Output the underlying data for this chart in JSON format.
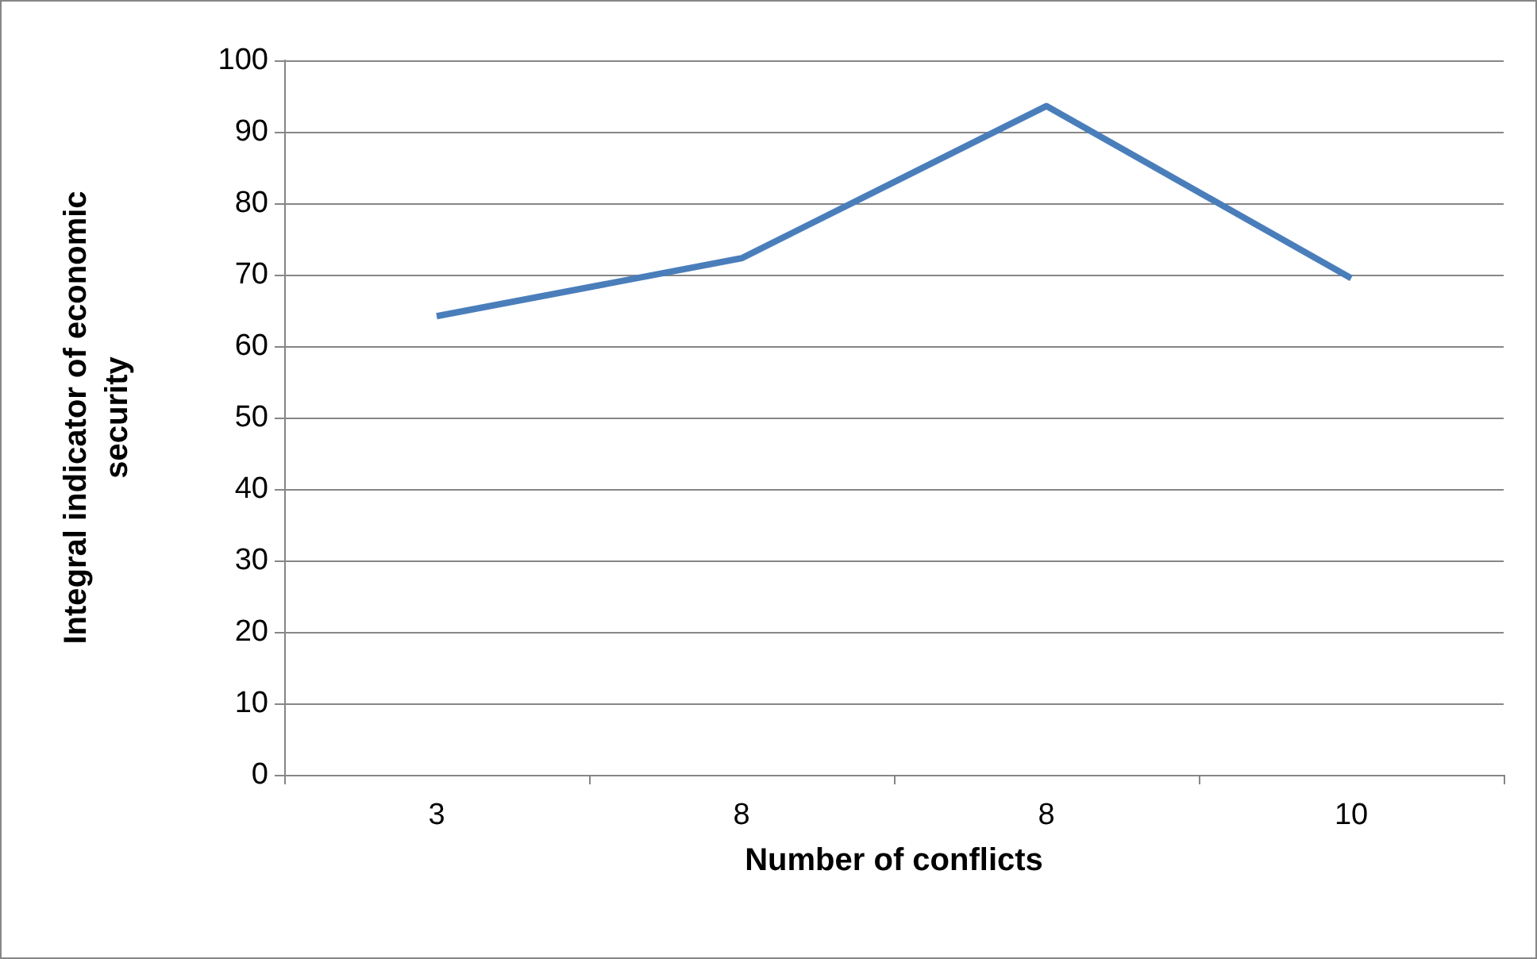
{
  "chart_data": {
    "type": "line",
    "xlabel": "Number of conflicts",
    "ylabel": "Integral indicator of economic security",
    "categories": [
      "3",
      "8",
      "8",
      "10"
    ],
    "series": [
      {
        "color": "#4a7ebb",
        "values": [
          64.2,
          72.3,
          93.6,
          69.5
        ]
      }
    ],
    "ylim": [
      0,
      100
    ],
    "yticks": [
      0,
      10,
      20,
      30,
      40,
      50,
      60,
      70,
      80,
      90,
      100
    ],
    "grid": "y"
  }
}
